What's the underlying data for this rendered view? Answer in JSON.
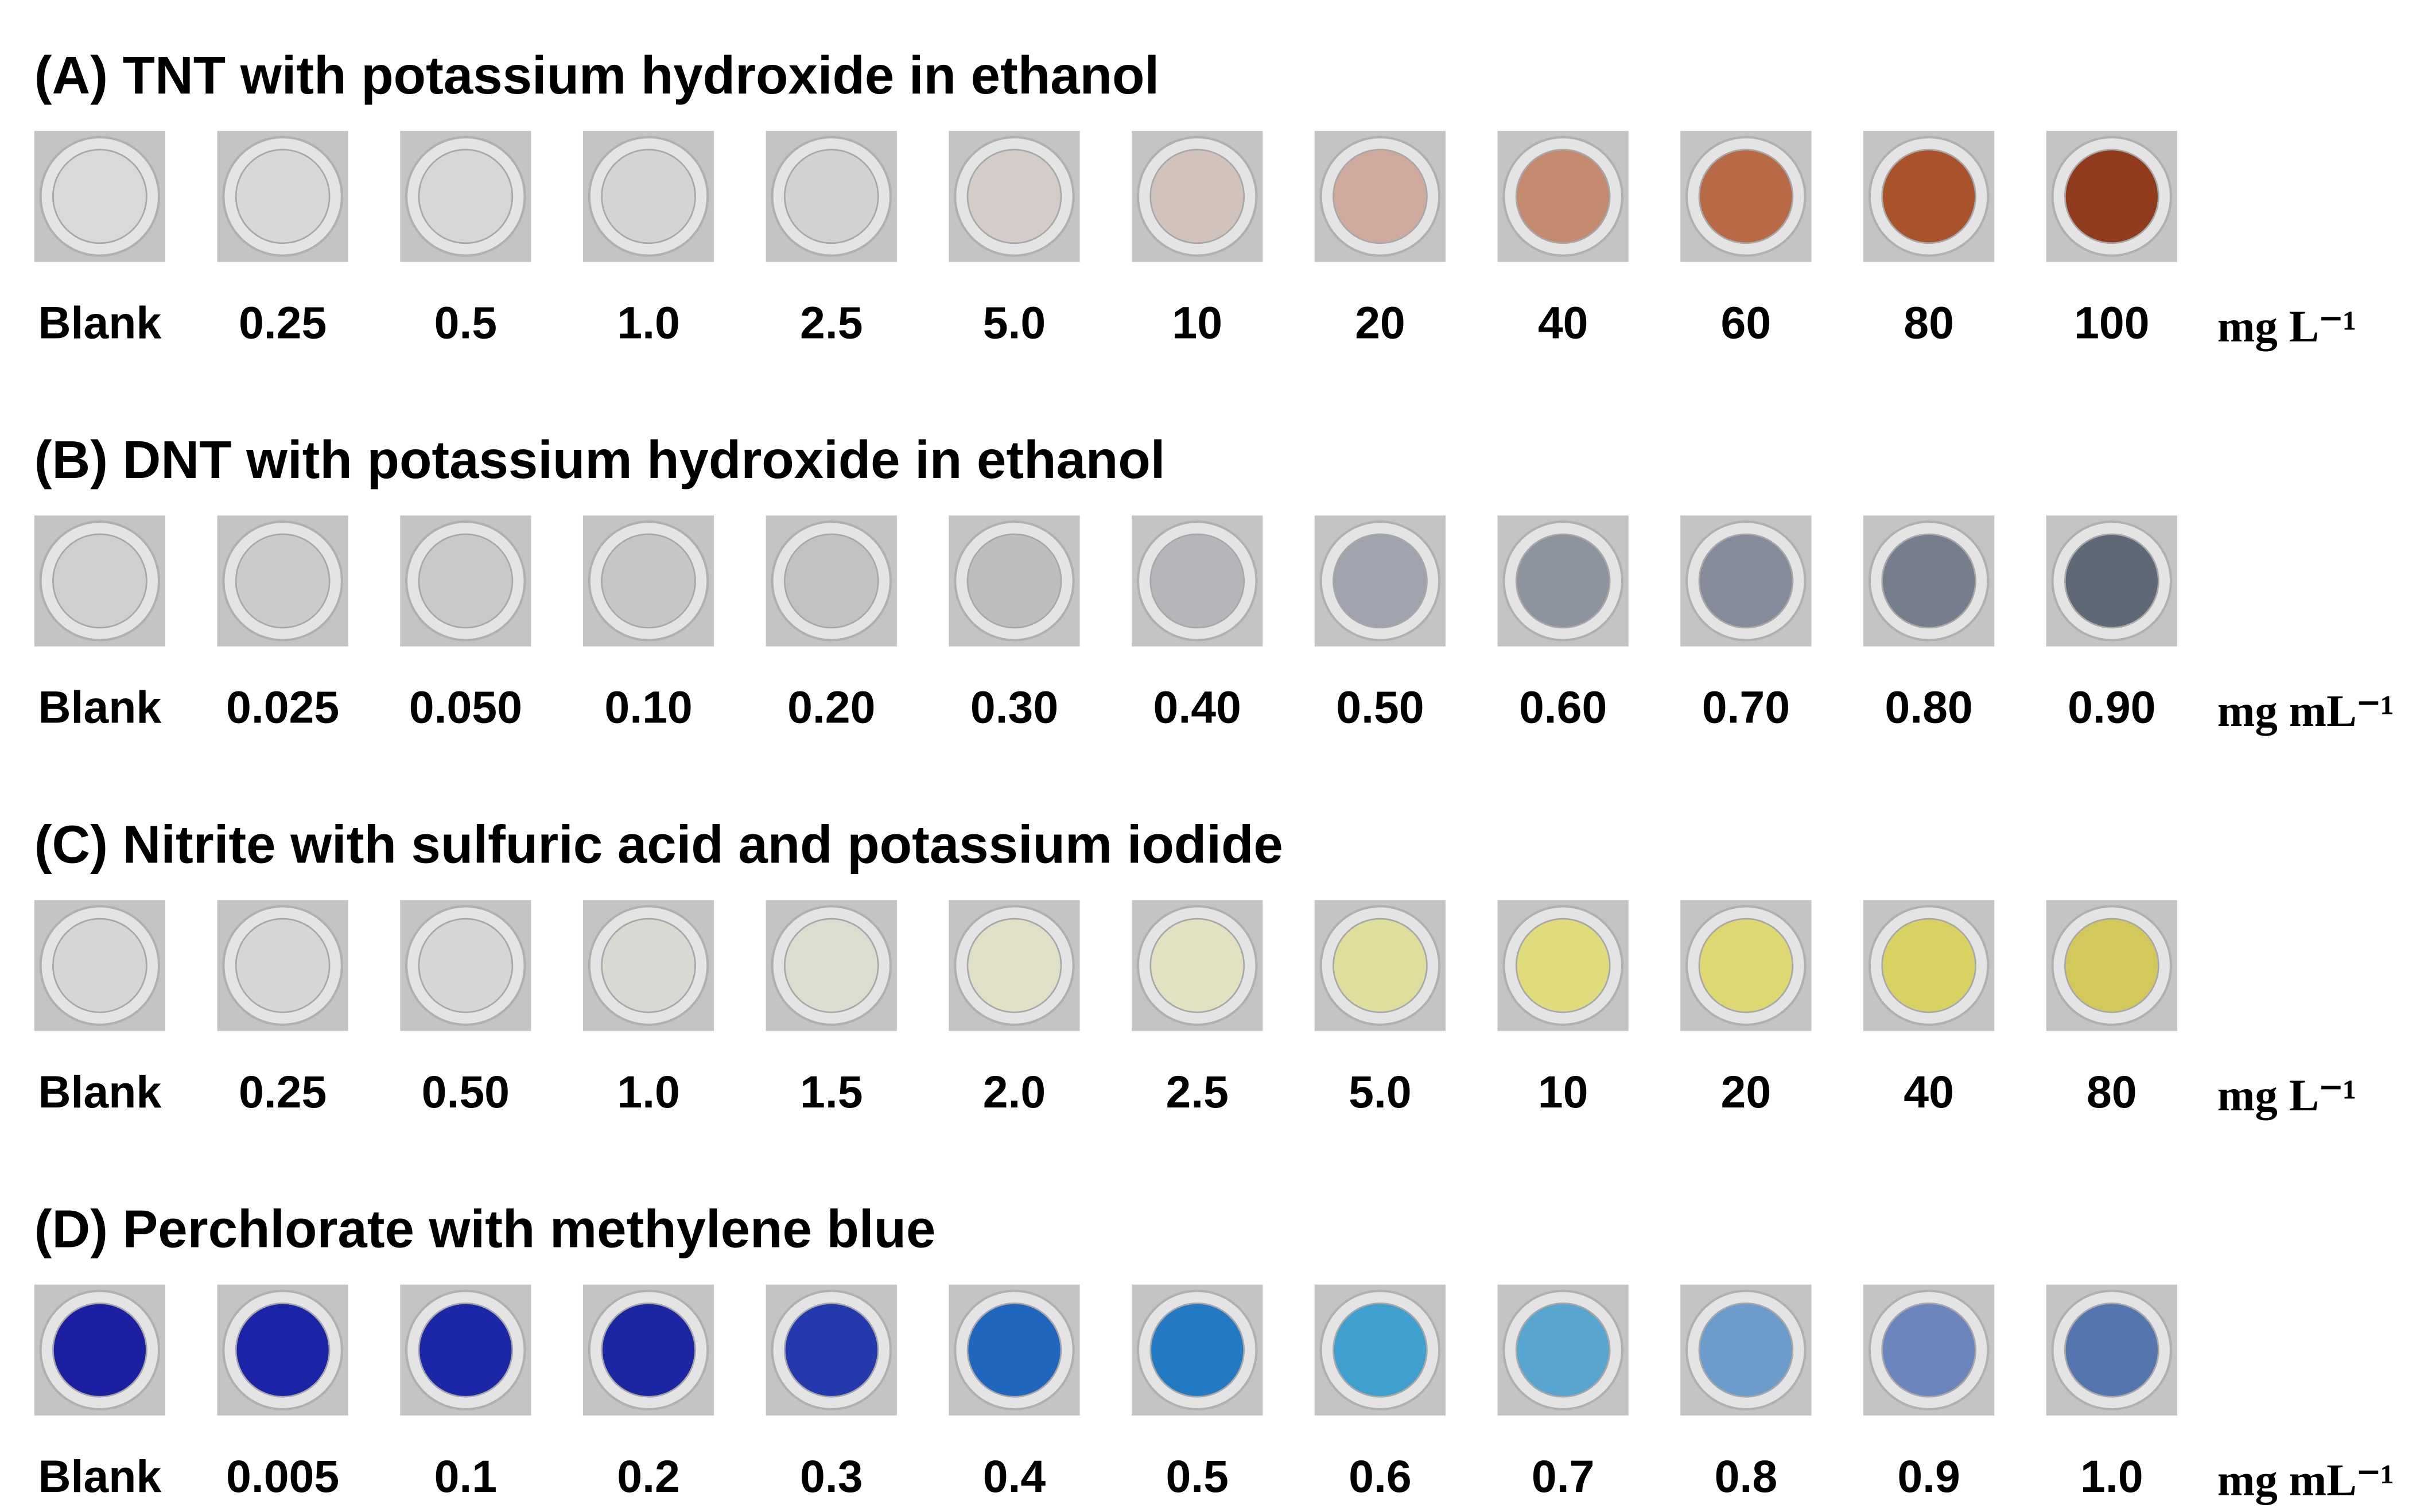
{
  "panels": [
    {
      "title": "(A) TNT with potassium hydroxide in ethanol",
      "labels": [
        "Blank",
        "0.25",
        "0.5",
        "1.0",
        "2.5",
        "5.0",
        "10",
        "20",
        "40",
        "60",
        "80",
        "100"
      ],
      "unit": "mg L⁻¹",
      "colors": [
        "#d9d9d9",
        "#d8d8d8",
        "#d7d7d7",
        "#d4d4d4",
        "#d3d2d1",
        "#d3ccc8",
        "#d2c2bc",
        "#cfaa9c",
        "#c48a6e",
        "#b76a45",
        "#a9532d",
        "#8f3b1c"
      ]
    },
    {
      "title": "(B) DNT with potassium hydroxide in ethanol",
      "labels": [
        "Blank",
        "0.025",
        "0.050",
        "0.10",
        "0.20",
        "0.30",
        "0.40",
        "0.50",
        "0.60",
        "0.70",
        "0.80",
        "0.90"
      ],
      "unit": "mg mL⁻¹",
      "colors": [
        "#cfcfcf",
        "#cbcbcb",
        "#c9c9c9",
        "#c6c6c6",
        "#c2c2c3",
        "#bebebf",
        "#b5b6ba",
        "#a0a3ad",
        "#8e93a0",
        "#858b9a",
        "#767d8d",
        "#5f6876"
      ]
    },
    {
      "title": "(C) Nitrite with sulfuric acid and potassium iodide",
      "labels": [
        "Blank",
        "0.25",
        "0.50",
        "1.0",
        "1.5",
        "2.0",
        "2.5",
        "5.0",
        "10",
        "20",
        "40",
        "80"
      ],
      "unit": "mg L⁻¹",
      "colors": [
        "#d6d6d6",
        "#d6d6d6",
        "#d6d6d4",
        "#d8d9d2",
        "#dcdccf",
        "#e0e0c6",
        "#e2e2c2",
        "#e0de9c",
        "#e0dc7c",
        "#ddd872",
        "#d8d262",
        "#d2c95a"
      ]
    },
    {
      "title": "(D) Perchlorate with methylene blue",
      "labels": [
        "Blank",
        "0.005",
        "0.1",
        "0.2",
        "0.3",
        "0.4",
        "0.5",
        "0.6",
        "0.7",
        "0.8",
        "0.9",
        "1.0"
      ],
      "unit": "mg mL⁻¹",
      "colors": [
        "#1c1fa2",
        "#1b24a6",
        "#1c27a8",
        "#1d26a2",
        "#2339ad",
        "#1f66bf",
        "#2479c3",
        "#3fa0cf",
        "#58a6cf",
        "#6b9ccb",
        "#6c86bd",
        "#5475ad"
      ]
    }
  ]
}
